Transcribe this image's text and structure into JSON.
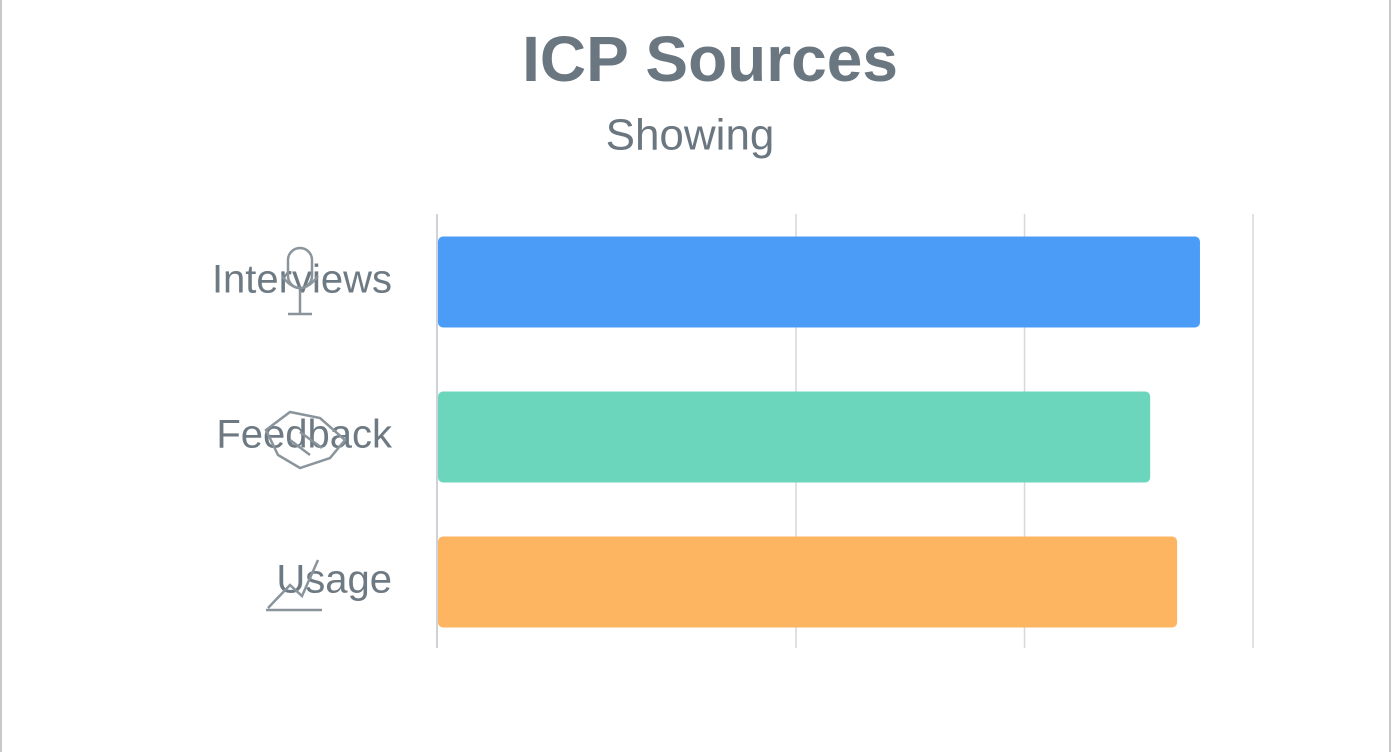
{
  "chart_data": {
    "type": "hbar",
    "title": "ICP Sources",
    "subtitle": "Showing",
    "categories": [
      "Interviews",
      "Feedback",
      "Usage"
    ],
    "series": [
      {
        "values": [
          93.5,
          87.4,
          90.7
        ],
        "colors": [
          "#4a9cf7",
          "#6cd6bd",
          "#fdb561"
        ]
      }
    ],
    "xlim": [
      0,
      100
    ],
    "gridlines": [
      0,
      44,
      72,
      100
    ]
  }
}
